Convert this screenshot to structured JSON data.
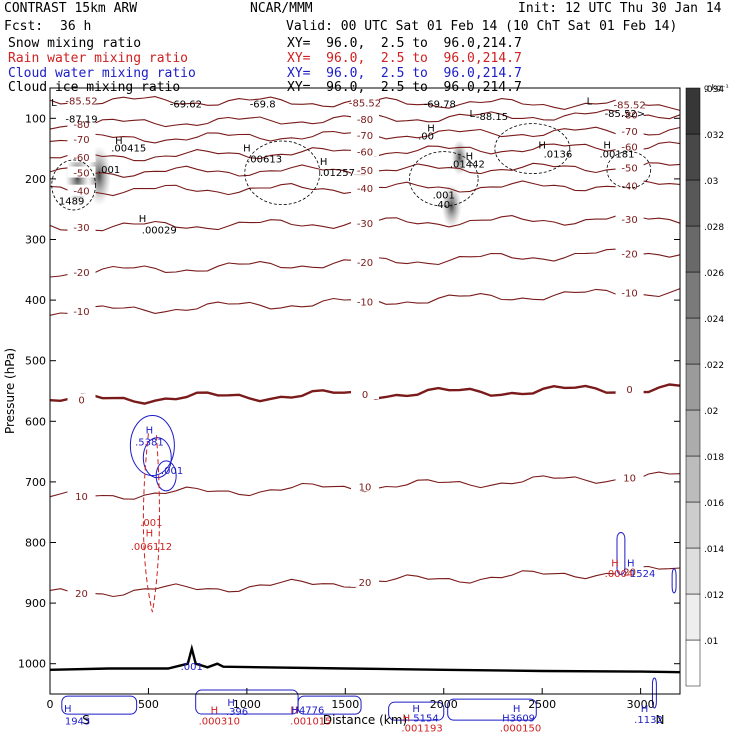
{
  "header": {
    "model": "CONTRAST 15km ARW",
    "org": "NCAR/MMM",
    "init": "Init: 12 UTC Thu 30 Jan 14",
    "fcst_label": "Fcst:",
    "fcst_value": "36 h",
    "valid": "Valid: 00 UTC Sat 01 Feb 14 (10 ChT Sat 01 Feb 14)",
    "legend": [
      {
        "label": "Snow mixing ratio",
        "xy": "XY=  96.0,  2.5 to  96.0,214.7",
        "color": "#000000"
      },
      {
        "label": "Rain water mixing ratio",
        "xy": "XY=  96.0,  2.5 to  96.0,214.7",
        "color": "#d02020"
      },
      {
        "label": "Cloud water mixing ratio",
        "xy": "XY=  96.0,  2.5 to  96.0,214.7",
        "color": "#1c1cc8"
      },
      {
        "label": "Cloud ice mixing ratio",
        "xy": "XY=  96.0,  2.5 to  96.0,214.7",
        "color": "#000000"
      }
    ]
  },
  "chart_data": {
    "type": "cross-section",
    "xlabel": "Distance (km)",
    "ylabel": "Pressure (hPa)",
    "xlim": [
      0,
      3200
    ],
    "ylim": [
      1050,
      50
    ],
    "x_ticks": [
      0,
      500,
      1000,
      1500,
      2000,
      2500,
      3000
    ],
    "y_ticks": [
      100,
      200,
      300,
      400,
      500,
      600,
      700,
      800,
      900,
      1000
    ],
    "x_end_labels": {
      "left": "S",
      "right": "N"
    },
    "colorbar": {
      "unit": "g kg⁻¹",
      "levels": [
        0.01,
        0.012,
        0.014,
        0.016,
        0.018,
        0.02,
        0.022,
        0.024,
        0.026,
        0.028,
        0.03,
        0.032,
        0.034
      ],
      "tick_labels": [
        ".01",
        ".012",
        ".014",
        ".016",
        ".018",
        ".02",
        ".022",
        ".024",
        ".026",
        ".028",
        ".03",
        ".032",
        ".034"
      ]
    },
    "isotherms": [
      {
        "value": -85.52,
        "label": "-85.52",
        "p_left": 70,
        "p_right": 78
      },
      {
        "value": -80,
        "label": "-80",
        "p_left": 110,
        "p_right": 92
      },
      {
        "value": -70,
        "label": "-70",
        "p_left": 135,
        "p_right": 120
      },
      {
        "value": -60,
        "label": "-60",
        "p_left": 165,
        "p_right": 145
      },
      {
        "value": -50,
        "label": "-50",
        "p_left": 190,
        "p_right": 180
      },
      {
        "value": -40,
        "label": "-40",
        "p_left": 220,
        "p_right": 210
      },
      {
        "value": -30,
        "label": "-30",
        "p_left": 280,
        "p_right": 265
      },
      {
        "value": -20,
        "label": "-20",
        "p_left": 355,
        "p_right": 320
      },
      {
        "value": -10,
        "label": "-10",
        "p_left": 420,
        "p_right": 385
      },
      {
        "value": 0,
        "label": "0",
        "p_left": 565,
        "p_right": 545
      },
      {
        "value": 10,
        "label": "10",
        "p_left": 725,
        "p_right": 690
      },
      {
        "value": 20,
        "label": "20",
        "p_left": 885,
        "p_right": 845
      }
    ],
    "annotations": [
      {
        "text": "L",
        "x": 20,
        "p": 80,
        "color": "#000000"
      },
      {
        "text": "-87.19",
        "x": 160,
        "p": 107,
        "color": "#000000"
      },
      {
        "text": "H",
        "x": 350,
        "p": 142,
        "color": "#000000"
      },
      {
        "text": ".00415",
        "x": 400,
        "p": 155,
        "color": "#000000"
      },
      {
        "text": ".001",
        "x": 300,
        "p": 190,
        "color": "#000000"
      },
      {
        "text": "1489",
        "x": 110,
        "p": 242,
        "color": "#000000"
      },
      {
        "text": "-69.62",
        "x": 690,
        "p": 82,
        "color": "#000000"
      },
      {
        "text": "-69.8",
        "x": 1080,
        "p": 82,
        "color": "#000000"
      },
      {
        "text": "H",
        "x": 1000,
        "p": 155,
        "color": "#000000"
      },
      {
        "text": ".00613",
        "x": 1090,
        "p": 173,
        "color": "#000000"
      },
      {
        "text": "H",
        "x": 1390,
        "p": 177,
        "color": "#000000"
      },
      {
        "text": ".01257",
        "x": 1460,
        "p": 195,
        "color": "#000000"
      },
      {
        "text": "H",
        "x": 470,
        "p": 271,
        "color": "#000000"
      },
      {
        "text": ".00029",
        "x": 555,
        "p": 290,
        "color": "#000000"
      },
      {
        "text": "-69.78",
        "x": 1980,
        "p": 82,
        "color": "#000000"
      },
      {
        "text": "H",
        "x": 1935,
        "p": 122,
        "color": "#000000"
      },
      {
        "text": ".00",
        "x": 1910,
        "p": 135,
        "color": "#000000"
      },
      {
        "text": "L",
        "x": 2145,
        "p": 98,
        "color": "#000000"
      },
      {
        "text": "-88.15",
        "x": 2245,
        "p": 103,
        "color": "#000000"
      },
      {
        "text": "L",
        "x": 2740,
        "p": 77,
        "color": "#000000"
      },
      {
        "text": "-85.52>",
        "x": 2920,
        "p": 98,
        "color": "#000000"
      },
      {
        "text": "H",
        "x": 2130,
        "p": 168,
        "color": "#000000"
      },
      {
        "text": ".01442",
        "x": 2120,
        "p": 181,
        "color": "#000000"
      },
      {
        "text": "H",
        "x": 2500,
        "p": 150,
        "color": "#000000"
      },
      {
        "text": ".0136",
        "x": 2580,
        "p": 165,
        "color": "#000000"
      },
      {
        "text": "H",
        "x": 2830,
        "p": 150,
        "color": "#000000"
      },
      {
        "text": ".00181",
        "x": 2880,
        "p": 165,
        "color": "#000000"
      },
      {
        "text": ".001",
        "x": 2000,
        "p": 232,
        "color": "#000000"
      },
      {
        "text": "40",
        "x": 2000,
        "p": 248,
        "color": "#000000"
      },
      {
        "text": "H",
        "x": 505,
        "p": 620,
        "color": "#1c1cc8"
      },
      {
        "text": ".5381",
        "x": 505,
        "p": 640,
        "color": "#1c1cc8"
      },
      {
        "text": ".001",
        "x": 620,
        "p": 687,
        "color": "#1c1cc8"
      },
      {
        "text": ".001",
        "x": 515,
        "p": 773,
        "color": "#d02020"
      },
      {
        "text": "H",
        "x": 505,
        "p": 790,
        "color": "#d02020"
      },
      {
        "text": ".006112",
        "x": 515,
        "p": 812,
        "color": "#d02020"
      },
      {
        "text": "H",
        "x": 2870,
        "p": 840,
        "color": "#d02020"
      },
      {
        "text": ".0004",
        "x": 2890,
        "p": 857,
        "color": "#d02020"
      },
      {
        "text": "H",
        "x": 2950,
        "p": 840,
        "color": "#1c1cc8"
      },
      {
        "text": "1524",
        "x": 3010,
        "p": 857,
        "color": "#1c1cc8"
      },
      {
        "text": ".001",
        "x": 720,
        "p": 1010,
        "color": "#1c1cc8"
      },
      {
        "text": "H",
        "x": 90,
        "p": 1080,
        "color": "#1c1cc8"
      },
      {
        "text": "1943",
        "x": 140,
        "p": 1100,
        "color": "#1c1cc8"
      },
      {
        "text": "H",
        "x": 920,
        "p": 1070,
        "color": "#1c1cc8"
      },
      {
        "text": ".396",
        "x": 950,
        "p": 1085,
        "color": "#1c1cc8"
      },
      {
        "text": "H",
        "x": 835,
        "p": 1082,
        "color": "#d02020"
      },
      {
        "text": ".000310",
        "x": 860,
        "p": 1100,
        "color": "#d02020"
      },
      {
        "text": "H",
        "x": 1240,
        "p": 1082,
        "color": "#d02020"
      },
      {
        "text": "H4776",
        "x": 1310,
        "p": 1082,
        "color": "#1c1cc8"
      },
      {
        "text": ".001015",
        "x": 1325,
        "p": 1100,
        "color": "#d02020"
      },
      {
        "text": "H",
        "x": 1860,
        "p": 1080,
        "color": "#1c1cc8"
      },
      {
        "text": "H",
        "x": 1810,
        "p": 1095,
        "color": "#d02020"
      },
      {
        "text": "5154",
        "x": 1910,
        "p": 1095,
        "color": "#1c1cc8"
      },
      {
        "text": ".001193",
        "x": 1890,
        "p": 1112,
        "color": "#d02020"
      },
      {
        "text": "H",
        "x": 2370,
        "p": 1080,
        "color": "#1c1cc8"
      },
      {
        "text": "H3609",
        "x": 2380,
        "p": 1095,
        "color": "#1c1cc8"
      },
      {
        "text": ".000150",
        "x": 2390,
        "p": 1112,
        "color": "#d02020"
      },
      {
        "text": "H",
        "x": 3020,
        "p": 1080,
        "color": "#1c1cc8"
      },
      {
        "text": ".1132",
        "x": 3040,
        "p": 1098,
        "color": "#1c1cc8"
      }
    ],
    "terrain": [
      [
        0,
        1010
      ],
      [
        300,
        1008
      ],
      [
        600,
        1008
      ],
      [
        700,
        1000
      ],
      [
        720,
        975
      ],
      [
        740,
        1000
      ],
      [
        800,
        1006
      ],
      [
        850,
        1000
      ],
      [
        880,
        1005
      ],
      [
        1500,
        1008
      ],
      [
        2000,
        1010
      ],
      [
        2500,
        1012
      ],
      [
        3000,
        1013
      ],
      [
        3200,
        1014
      ]
    ]
  }
}
